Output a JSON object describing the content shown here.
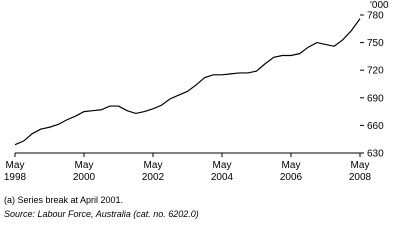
{
  "chart_data": {
    "type": "line",
    "unit_label": "'000",
    "x": [
      "1998-05",
      "1998-08",
      "1998-11",
      "1999-02",
      "1999-05",
      "1999-08",
      "1999-11",
      "2000-02",
      "2000-05",
      "2000-08",
      "2000-11",
      "2001-02",
      "2001-05",
      "2001-08",
      "2001-11",
      "2002-02",
      "2002-05",
      "2002-08",
      "2002-11",
      "2003-02",
      "2003-05",
      "2003-08",
      "2003-11",
      "2004-02",
      "2004-05",
      "2004-08",
      "2004-11",
      "2005-02",
      "2005-05",
      "2005-08",
      "2005-11",
      "2006-02",
      "2006-05",
      "2006-08",
      "2006-11",
      "2007-02",
      "2007-05",
      "2007-08",
      "2007-11",
      "2008-02",
      "2008-05"
    ],
    "series": [
      {
        "color": "#000000",
        "values": [
          639,
          643,
          651,
          656,
          658,
          661,
          666,
          670,
          675,
          676,
          677,
          681,
          681,
          676,
          673,
          675,
          678,
          682,
          689,
          693,
          697,
          704,
          712,
          715,
          715,
          716,
          717,
          717,
          719,
          727,
          734,
          736,
          736,
          738,
          745,
          750,
          748,
          746,
          753,
          763,
          776
        ]
      }
    ],
    "ylim": [
      630,
      780
    ],
    "yticks": [
      630,
      660,
      690,
      720,
      750,
      780
    ],
    "xticks": [
      {
        "value": "1998-05",
        "label": [
          "May",
          "1998"
        ]
      },
      {
        "value": "2000-05",
        "label": [
          "May",
          "2000"
        ]
      },
      {
        "value": "2002-05",
        "label": [
          "May",
          "2002"
        ]
      },
      {
        "value": "2004-05",
        "label": [
          "May",
          "2004"
        ]
      },
      {
        "value": "2006-05",
        "label": [
          "May",
          "2006"
        ]
      },
      {
        "value": "2008-05",
        "label": [
          "May",
          "2008"
        ]
      }
    ],
    "footnote": "(a) Series break at April 2001.",
    "source": "Source: Labour Force, Australia (cat. no. 6202.0)"
  }
}
